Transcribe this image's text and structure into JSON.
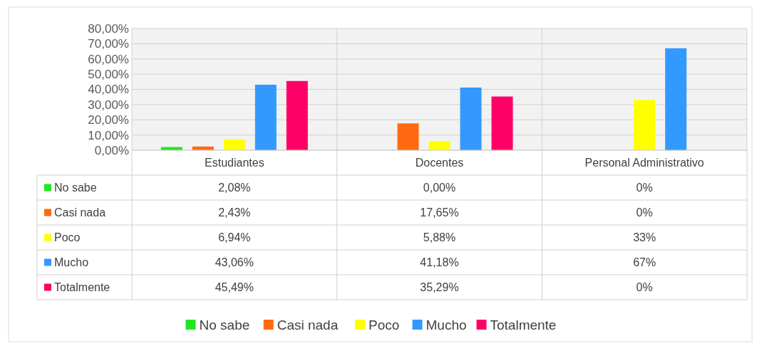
{
  "chart_data": {
    "type": "bar",
    "categories": [
      "Estudiantes",
      "Docentes",
      "Personal Administrativo"
    ],
    "series": [
      {
        "name": "No sabe",
        "color": "#22e622",
        "values": [
          2.08,
          0,
          0
        ],
        "value_labels": [
          "2,08%",
          "0,00%",
          "0%"
        ]
      },
      {
        "name": "Casi nada",
        "color": "#ff6a10",
        "values": [
          2.43,
          17.65,
          0
        ],
        "value_labels": [
          "2,43%",
          "17,65%",
          "0%"
        ]
      },
      {
        "name": "Poco",
        "color": "#ffff00",
        "values": [
          6.94,
          5.88,
          33
        ],
        "value_labels": [
          "6,94%",
          "5,88%",
          "33%"
        ]
      },
      {
        "name": "Mucho",
        "color": "#3399ff",
        "values": [
          43.06,
          41.18,
          67
        ],
        "value_labels": [
          "43,06%",
          "41,18%",
          "67%"
        ]
      },
      {
        "name": "Totalmente",
        "color": "#ff0066",
        "values": [
          45.49,
          35.29,
          0
        ],
        "value_labels": [
          "45,49%",
          "35,29%",
          "0%"
        ]
      }
    ],
    "ylim": [
      0,
      80
    ],
    "yticks": [
      {
        "value": 0,
        "label": "0,00%"
      },
      {
        "value": 10,
        "label": "10,00%"
      },
      {
        "value": 20,
        "label": "20,00%"
      },
      {
        "value": 30,
        "label": "30,00%"
      },
      {
        "value": 40,
        "label": "40,00%"
      },
      {
        "value": 50,
        "label": "50,00%"
      },
      {
        "value": 60,
        "label": "60,00%"
      },
      {
        "value": 70,
        "label": "70,00%"
      },
      {
        "value": 80,
        "label": "80,00%"
      }
    ],
    "grid": "y",
    "legend": "bottom"
  }
}
